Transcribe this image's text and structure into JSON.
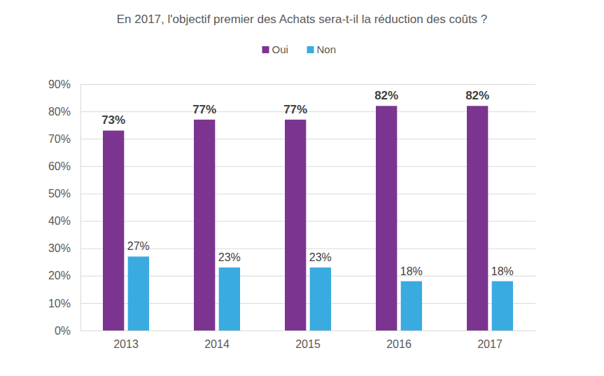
{
  "chart_data": {
    "type": "bar",
    "title": "En 2017, l'objectif premier des Achats sera-t-il la réduction des coûts ?",
    "categories": [
      "2013",
      "2014",
      "2015",
      "2016",
      "2017"
    ],
    "series": [
      {
        "name": "Oui",
        "color": "#7b3590",
        "values": [
          73,
          77,
          77,
          82,
          82
        ],
        "value_labels": [
          "73%",
          "77%",
          "77%",
          "82%",
          "82%"
        ]
      },
      {
        "name": "Non",
        "color": "#3aabe0",
        "values": [
          27,
          23,
          23,
          18,
          18
        ],
        "value_labels": [
          "27%",
          "23%",
          "23%",
          "18%",
          "18%"
        ]
      }
    ],
    "ylim": [
      0,
      90
    ],
    "yticks": [
      {
        "value": 0,
        "label": "0%"
      },
      {
        "value": 10,
        "label": "10%"
      },
      {
        "value": 20,
        "label": "20%"
      },
      {
        "value": 30,
        "label": "30%"
      },
      {
        "value": 40,
        "label": "40%"
      },
      {
        "value": 50,
        "label": "50%"
      },
      {
        "value": 60,
        "label": "60%"
      },
      {
        "value": 70,
        "label": "70%"
      },
      {
        "value": 80,
        "label": "80%"
      },
      {
        "value": 90,
        "label": "90%"
      }
    ],
    "grid": true,
    "legend": "top",
    "data_labels": true
  }
}
